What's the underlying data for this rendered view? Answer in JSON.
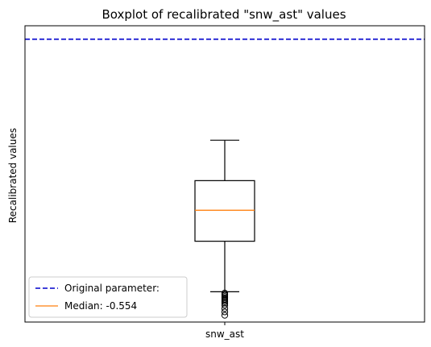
{
  "chart_data": {
    "type": "box",
    "title": "Boxplot of recalibrated \"snw_ast\" values",
    "xlabel": "",
    "ylabel": "Recalibrated values",
    "categories": [
      "snw_ast"
    ],
    "box": {
      "category": "snw_ast",
      "whisker_high": -0.45,
      "q3": -0.51,
      "median": -0.554,
      "q1": -0.6,
      "whisker_low": -0.675,
      "outliers": [
        -0.677,
        -0.679,
        -0.68,
        -0.682,
        -0.684,
        -0.686,
        -0.688,
        -0.69,
        -0.692,
        -0.695,
        -0.7,
        -0.705,
        -0.71
      ]
    },
    "reference_line": {
      "value": -0.3,
      "color": "#0000cc",
      "style": "dashed"
    },
    "ylim": [
      -0.72,
      -0.28
    ],
    "yticks_visible": false,
    "grid": false,
    "legend": {
      "position": "bottom-left",
      "entries": [
        {
          "label": "Original parameter:",
          "color": "#0000cc",
          "style": "dashed"
        },
        {
          "label": "Median: -0.554",
          "color": "#ff7f0e",
          "style": "solid"
        }
      ]
    },
    "colors": {
      "box": "#000000",
      "median": "#ff7f0e",
      "reference": "#0000cc"
    }
  }
}
